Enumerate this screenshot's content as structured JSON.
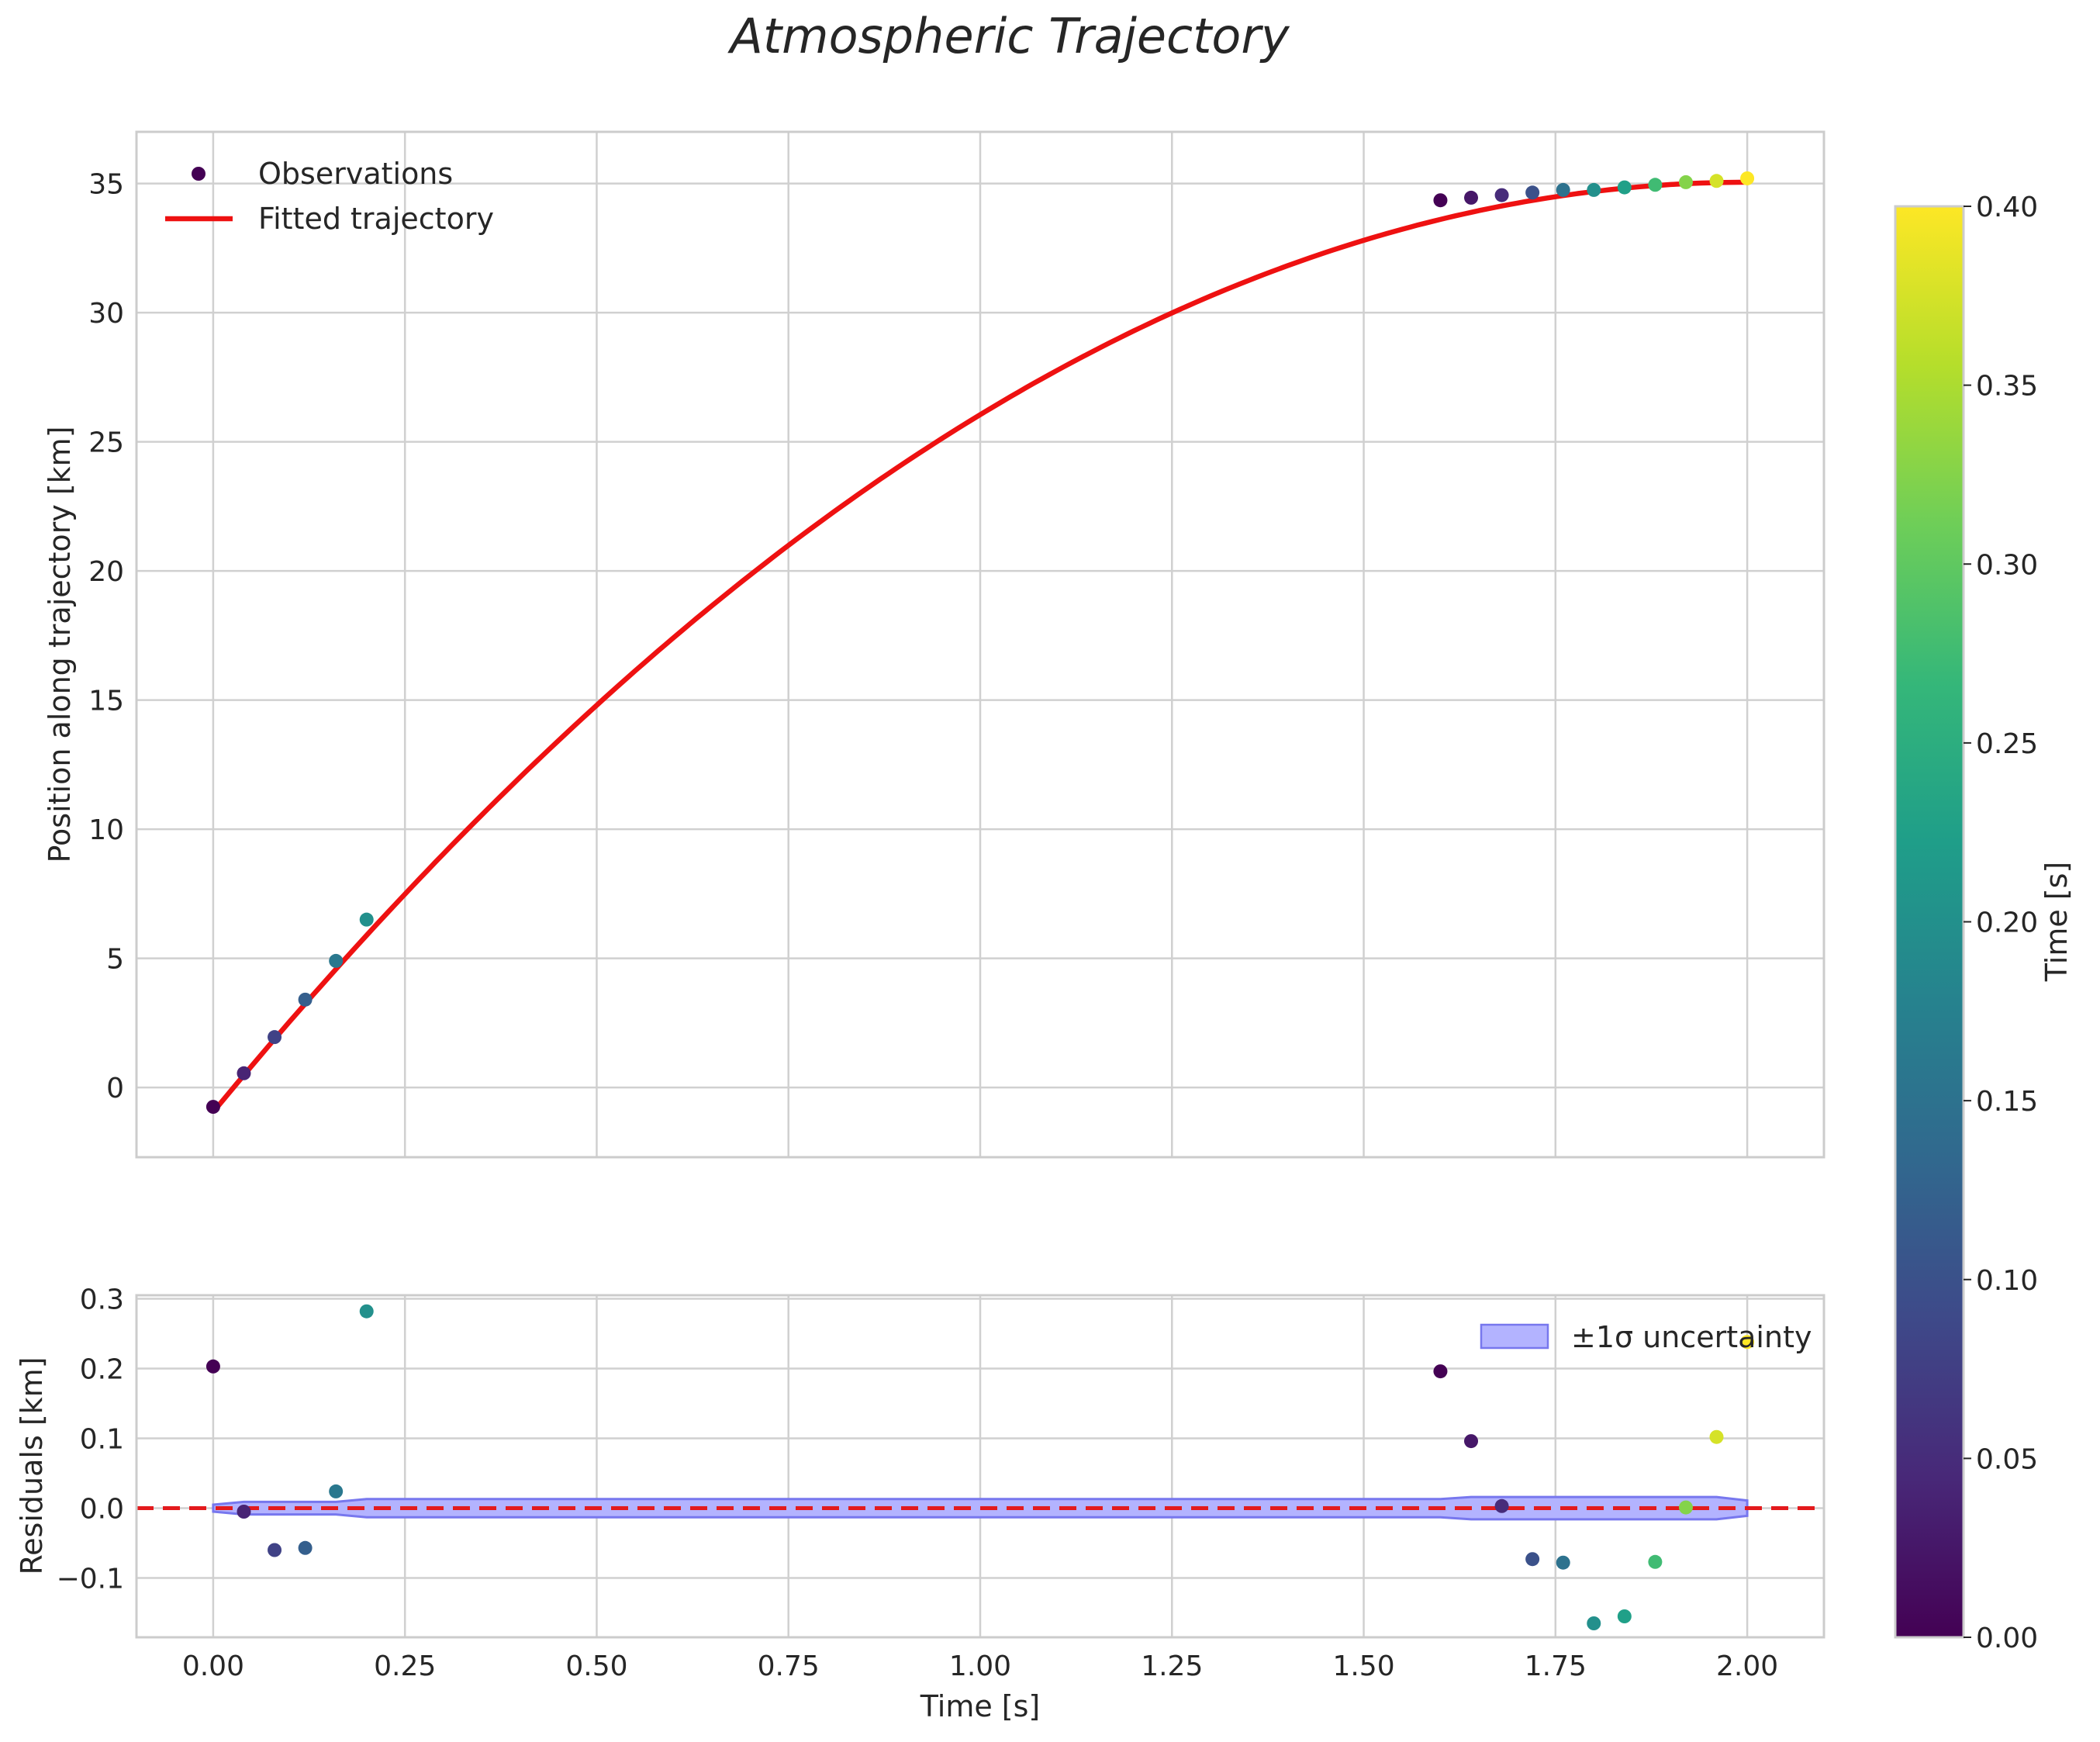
{
  "chart_data": {
    "title": "Atmospheric Trajectory",
    "top": {
      "type": "scatter+line",
      "ylabel": "Position along trajectory [km]",
      "xlim": [
        -0.1,
        2.1
      ],
      "ylim": [
        -2.7,
        37.0
      ],
      "yticks": [
        0,
        5,
        10,
        15,
        20,
        25,
        30,
        35
      ],
      "xticks": [
        0.0,
        0.25,
        0.5,
        0.75,
        1.0,
        1.25,
        1.5,
        1.75,
        2.0
      ],
      "legend": {
        "observations": "Observations",
        "fit": "Fitted trajectory",
        "placement": "top-left"
      },
      "observations": {
        "time": [
          0.0,
          0.04,
          0.08,
          0.12,
          0.16,
          0.2,
          1.6,
          1.64,
          1.68,
          1.72,
          1.76,
          1.8,
          1.84,
          1.88,
          1.92,
          1.96,
          2.0
        ],
        "position": [
          -0.75,
          0.55,
          1.95,
          3.4,
          4.9,
          6.5,
          34.35,
          34.45,
          34.55,
          34.65,
          34.75,
          34.75,
          34.85,
          34.95,
          35.05,
          35.1,
          35.2
        ],
        "color_value": [
          0.0,
          0.04,
          0.08,
          0.12,
          0.16,
          0.2,
          0.0,
          0.025,
          0.05,
          0.1,
          0.15,
          0.2,
          0.225,
          0.275,
          0.325,
          0.375,
          0.4
        ]
      },
      "fit": {
        "model": "quadratic",
        "coefficients": [
          -0.95,
          36.0,
          -9.0
        ],
        "t_range": [
          0.0,
          2.0
        ]
      }
    },
    "bottom": {
      "type": "scatter+band",
      "xlabel": "Time [s]",
      "ylabel": "Residuals [km]",
      "xlim": [
        -0.1,
        2.1
      ],
      "ylim": [
        -0.185,
        0.305
      ],
      "yticks": [
        -0.1,
        0.0,
        0.1,
        0.2,
        0.3
      ],
      "xticks": [
        0.0,
        0.25,
        0.5,
        0.75,
        1.0,
        1.25,
        1.5,
        1.75,
        2.0
      ],
      "legend": {
        "band": "±1σ uncertainty",
        "placement": "top-right"
      },
      "residuals": {
        "time": [
          0.0,
          0.04,
          0.08,
          0.12,
          0.16,
          0.2,
          1.6,
          1.64,
          1.68,
          1.72,
          1.76,
          1.8,
          1.84,
          1.88,
          1.92,
          1.96,
          2.0
        ],
        "value": [
          0.203,
          -0.005,
          -0.06,
          -0.057,
          0.024,
          0.282,
          0.196,
          0.096,
          0.003,
          -0.073,
          -0.078,
          -0.165,
          -0.155,
          -0.077,
          0.001,
          0.102,
          0.238
        ],
        "color_value": [
          0.0,
          0.04,
          0.08,
          0.12,
          0.16,
          0.2,
          0.0,
          0.025,
          0.05,
          0.1,
          0.15,
          0.2,
          0.225,
          0.275,
          0.325,
          0.375,
          0.4
        ]
      },
      "band": {
        "time": [
          0.0,
          0.04,
          0.16,
          0.2,
          1.6,
          1.64,
          1.96,
          2.0
        ],
        "sigma": [
          0.005,
          0.009,
          0.009,
          0.013,
          0.013,
          0.016,
          0.016,
          0.011
        ]
      },
      "zero_line": 0.0
    },
    "colorbar": {
      "label": "Time [s]",
      "range": [
        0.0,
        0.4
      ],
      "ticks": [
        "0.00",
        "0.05",
        "0.10",
        "0.15",
        "0.20",
        "0.25",
        "0.30",
        "0.35",
        "0.40"
      ],
      "colormap": "viridis"
    },
    "colors": {
      "fit_line": "#ee1111",
      "band_fill": "#b3b3ff",
      "band_edge": "#7777ee",
      "zero_line": "#e31a1c",
      "viridis": [
        "#440154",
        "#482878",
        "#3e4989",
        "#31688e",
        "#26828e",
        "#1f9e89",
        "#35b779",
        "#6ece58",
        "#b5de2b",
        "#fde725"
      ]
    }
  }
}
